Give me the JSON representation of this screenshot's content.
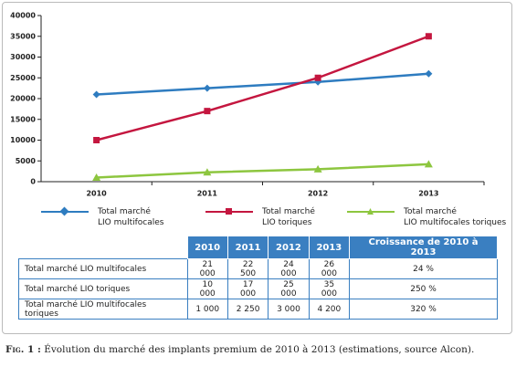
{
  "chart_data": {
    "type": "line",
    "categories": [
      "2010",
      "2011",
      "2012",
      "2013"
    ],
    "series": [
      {
        "name": "Total marché\nLIO multifocales",
        "color": "#2e7cc0",
        "marker": "diamond",
        "values": [
          21000,
          22500,
          24000,
          26000
        ]
      },
      {
        "name": "Total marché\nLIO toriques",
        "color": "#c4163f",
        "marker": "square",
        "values": [
          10000,
          17000,
          25000,
          35000
        ]
      },
      {
        "name": "Total marché\nLIO multifocales toriques",
        "color": "#8dc63f",
        "marker": "triangle",
        "values": [
          1000,
          2250,
          3000,
          4200
        ]
      }
    ],
    "ylim": [
      0,
      40000
    ],
    "yticks": [
      0,
      5000,
      10000,
      15000,
      20000,
      25000,
      30000,
      35000,
      40000
    ],
    "grid": false
  },
  "table": {
    "header": [
      "2010",
      "2011",
      "2012",
      "2013",
      "Croissance de 2010 à 2013"
    ],
    "rows": [
      {
        "label": "Total marché LIO multifocales",
        "cells": [
          "21 000",
          "22 500",
          "24 000",
          "26 000",
          "24 %"
        ]
      },
      {
        "label": "Total marché LIO toriques",
        "cells": [
          "10 000",
          "17 000",
          "25 000",
          "35 000",
          "250 %"
        ]
      },
      {
        "label": "Total marché LIO multifocales toriques",
        "cells": [
          "1 000",
          "2 250",
          "3 000",
          "4 200",
          "320 %"
        ]
      }
    ]
  },
  "caption": {
    "label": "Fig. 1 :",
    "text": "Évolution du marché des implants premium de 2010 à 2013 (estimations, source Alcon)."
  }
}
